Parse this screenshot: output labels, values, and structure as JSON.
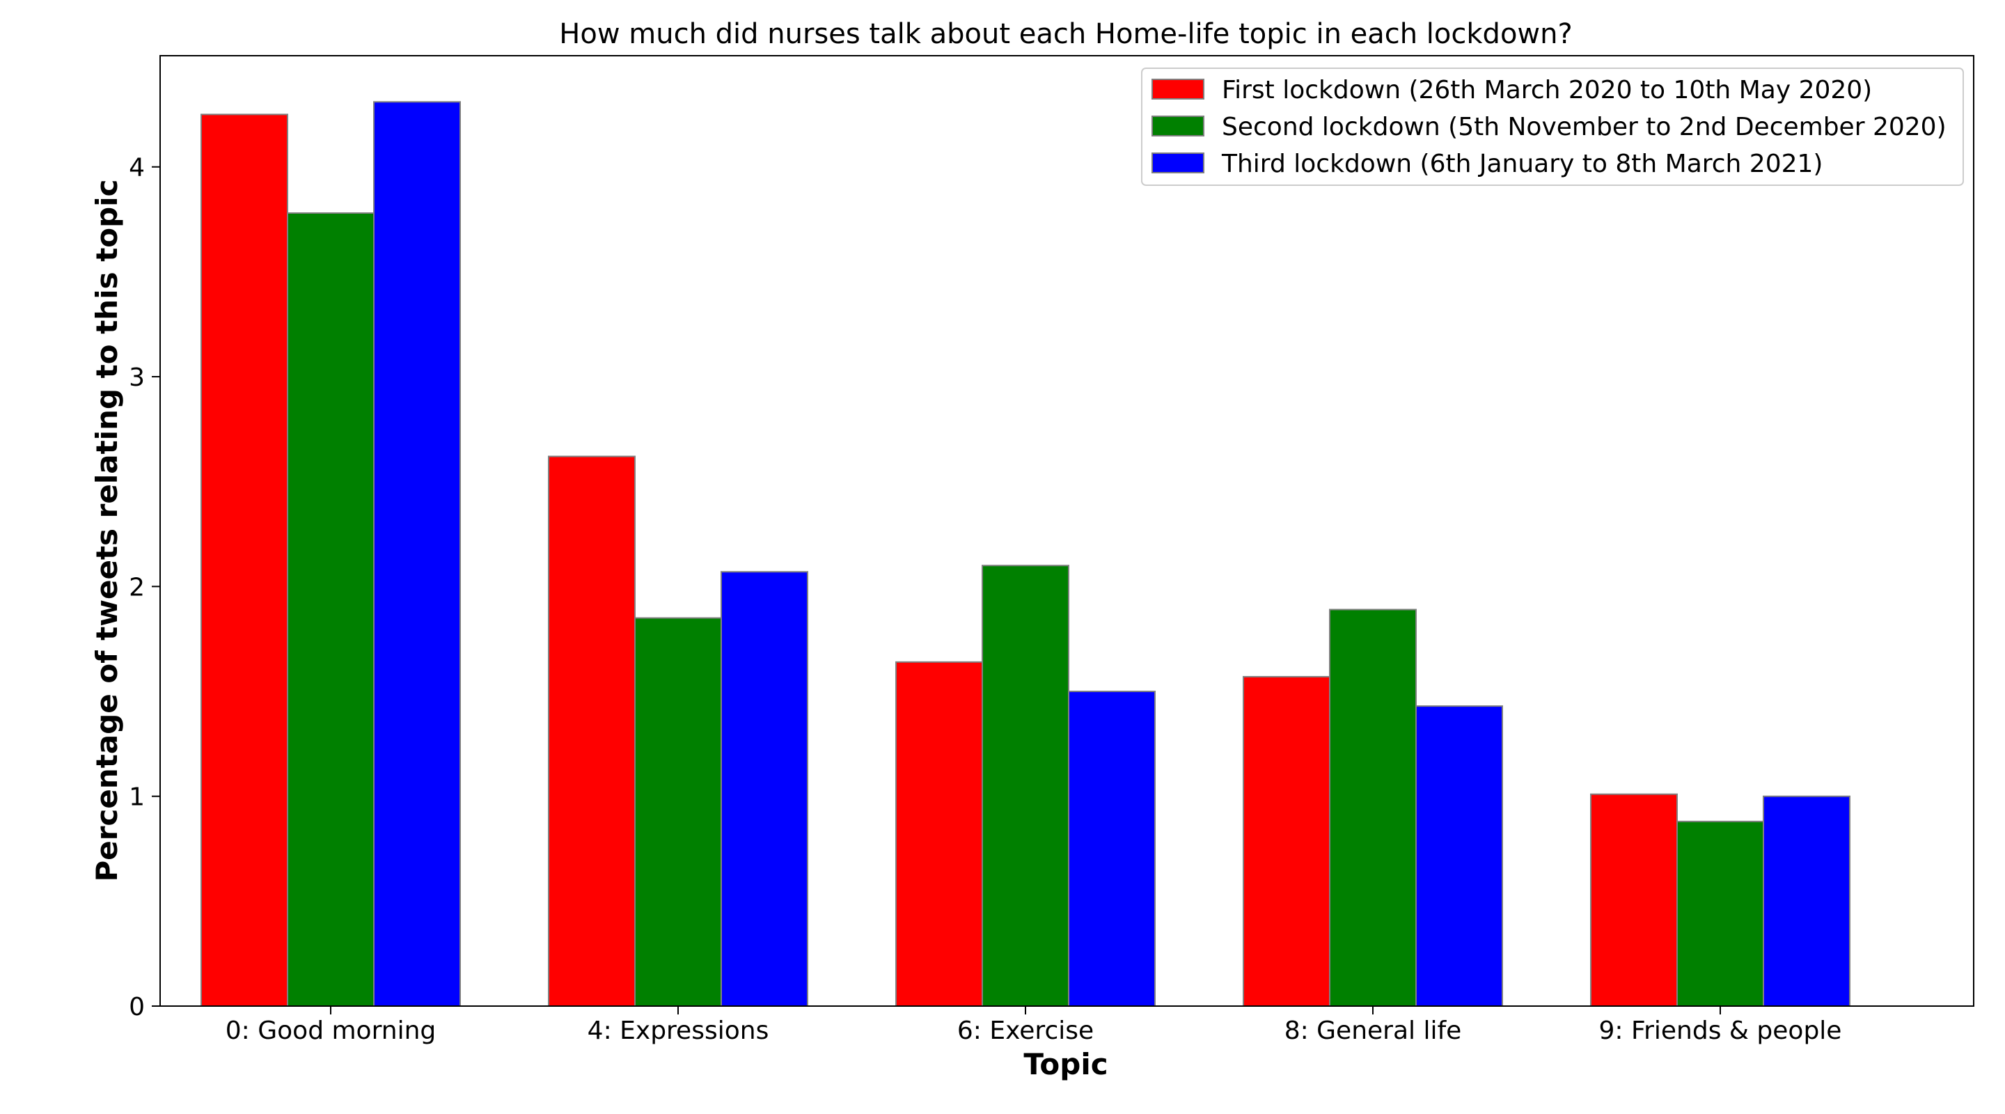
{
  "chart_data": {
    "type": "bar",
    "title": "How much did nurses talk about each Home-life topic in each lockdown?",
    "xlabel": "Topic",
    "ylabel": "Percentage of tweets relating to this topic",
    "categories": [
      "0: Good morning",
      "4: Expressions",
      "6: Exercise",
      "8: General life",
      "9: Friends & people"
    ],
    "series": [
      {
        "name": "First lockdown (26th March 2020 to 10th May 2020)",
        "color": "#ff0000",
        "values": [
          4.25,
          2.62,
          1.64,
          1.57,
          1.01
        ]
      },
      {
        "name": "Second lockdown (5th November to 2nd December 2020)",
        "color": "#008000",
        "values": [
          3.78,
          1.85,
          2.1,
          1.89,
          0.88
        ]
      },
      {
        "name": "Third lockdown (6th January to 8th March 2021)",
        "color": "#0000ff",
        "values": [
          4.31,
          2.07,
          1.5,
          1.43,
          1.0
        ]
      }
    ],
    "ylim": [
      0,
      4.53
    ],
    "yticks": [
      0,
      1,
      2,
      3,
      4
    ],
    "grid": false,
    "legend_position": "top-right"
  }
}
